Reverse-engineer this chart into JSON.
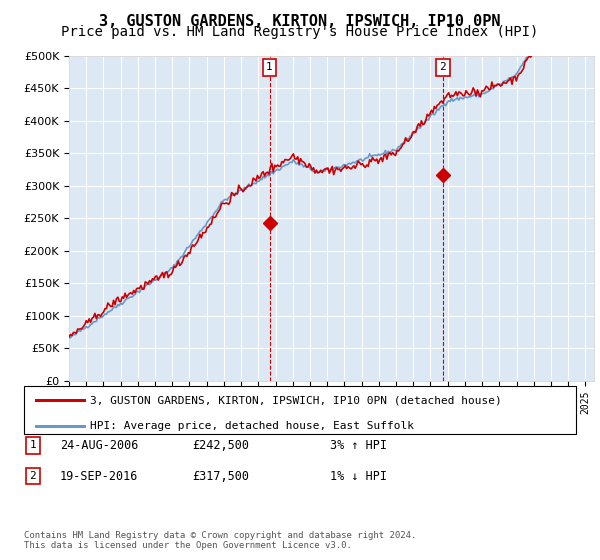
{
  "title": "3, GUSTON GARDENS, KIRTON, IPSWICH, IP10 0PN",
  "subtitle": "Price paid vs. HM Land Registry's House Price Index (HPI)",
  "ylabel_ticks": [
    "£0",
    "£50K",
    "£100K",
    "£150K",
    "£200K",
    "£250K",
    "£300K",
    "£350K",
    "£400K",
    "£450K",
    "£500K"
  ],
  "ytick_values": [
    0,
    50000,
    100000,
    150000,
    200000,
    250000,
    300000,
    350000,
    400000,
    450000,
    500000
  ],
  "ylim": [
    0,
    500000
  ],
  "x_start_year": 1995,
  "x_end_year": 2025,
  "background_color": "#dce9f5",
  "plot_bg_color": "#dce9f5",
  "hpi_color": "#6699cc",
  "price_color": "#cc0000",
  "sale1": {
    "date_num": 2006.65,
    "price": 242500,
    "label": "1"
  },
  "sale2": {
    "date_num": 2016.72,
    "price": 317500,
    "label": "2"
  },
  "legend_label1": "3, GUSTON GARDENS, KIRTON, IPSWICH, IP10 0PN (detached house)",
  "legend_label2": "HPI: Average price, detached house, East Suffolk",
  "table_rows": [
    {
      "num": "1",
      "date": "24-AUG-2006",
      "price": "£242,500",
      "hpi": "3% ↑ HPI"
    },
    {
      "num": "2",
      "date": "19-SEP-2016",
      "price": "£317,500",
      "hpi": "1% ↓ HPI"
    }
  ],
  "footnote": "Contains HM Land Registry data © Crown copyright and database right 2024.\nThis data is licensed under the Open Government Licence v3.0.",
  "title_fontsize": 11,
  "subtitle_fontsize": 10,
  "tick_fontsize": 8.5,
  "grid_color": "#ffffff",
  "vline_color": "#cc0000"
}
